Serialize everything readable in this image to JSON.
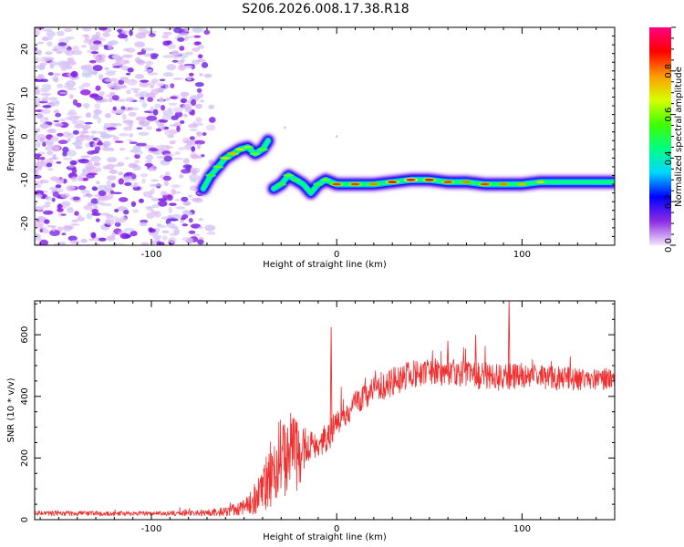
{
  "title": "S206.2026.008.17.38.R18",
  "chart_data": [
    {
      "type": "heatmap",
      "xlabel": "Height of straight line (km)",
      "ylabel": "Frequency (Hz)",
      "xlim": [
        -163,
        150
      ],
      "ylim": [
        -25,
        25
      ],
      "xticks": [
        "-100",
        "0",
        "100"
      ],
      "yticks": [
        "-20",
        "-10",
        "0",
        "10",
        "20"
      ],
      "colorbar": {
        "label": "Normalized spectral amplitude",
        "range": [
          0,
          1
        ],
        "ticks": [
          "0.0",
          "0.2",
          "0.4",
          "0.6",
          "0.8"
        ],
        "colors": [
          "#f2e6fb",
          "#8a2be2",
          "#0000ff",
          "#00d8ff",
          "#00ff80",
          "#40ff00",
          "#d8ff00",
          "#ff9a00",
          "#ff0000",
          "#ff0080"
        ]
      },
      "noise_region": {
        "x": [
          -163,
          -73
        ],
        "y": [
          -25,
          25
        ],
        "amplitude": 0.2
      },
      "ridge": {
        "x": [
          -72,
          -68,
          -64,
          -60,
          -56,
          -52,
          -48,
          -44,
          -40,
          -37,
          -34,
          -30,
          -26,
          -22,
          -18,
          -14,
          -10,
          -6,
          0,
          10,
          20,
          30,
          40,
          50,
          60,
          70,
          80,
          90,
          100,
          110,
          120,
          130,
          140,
          150
        ],
        "y": [
          -12,
          -9,
          -7,
          -5,
          -4,
          -3,
          -2.5,
          -4,
          -3,
          -1,
          -12,
          -11,
          -9,
          -10,
          -11,
          -13,
          -11,
          -10,
          -11,
          -11,
          -11,
          -10.5,
          -10,
          -10,
          -10.5,
          -10.5,
          -11,
          -11,
          -11,
          -10.5,
          -10.5,
          -10.5,
          -10.5,
          -10.5
        ],
        "amplitude": [
          0.45,
          0.55,
          0.6,
          0.7,
          0.75,
          0.7,
          0.65,
          0.6,
          0.6,
          0.4,
          0.5,
          0.55,
          0.6,
          0.55,
          0.5,
          0.45,
          0.55,
          0.6,
          0.85,
          0.85,
          0.8,
          0.9,
          0.95,
          0.9,
          0.85,
          0.8,
          0.85,
          0.8,
          0.75,
          0.7,
          0.5,
          0.45,
          0.45,
          0.45
        ]
      }
    },
    {
      "type": "line",
      "xlabel": "Height of straight line (km)",
      "ylabel": "SNR (10 * v/v)",
      "xlim": [
        -163,
        150
      ],
      "ylim": [
        0,
        710
      ],
      "xticks": [
        "-100",
        "0",
        "100"
      ],
      "yticks": [
        "0",
        "200",
        "400",
        "600"
      ],
      "color": "#f03030",
      "envelope": {
        "x": [
          -163,
          -100,
          -70,
          -60,
          -50,
          -40,
          -35,
          -30,
          -25,
          -20,
          -15,
          -10,
          -5,
          0,
          10,
          20,
          30,
          40,
          50,
          60,
          70,
          80,
          90,
          100,
          110,
          120,
          130,
          140,
          150
        ],
        "mean": [
          20,
          20,
          22,
          25,
          40,
          90,
          160,
          200,
          220,
          200,
          240,
          240,
          270,
          310,
          380,
          420,
          450,
          470,
          480,
          480,
          470,
          465,
          460,
          470,
          465,
          460,
          455,
          455,
          460
        ],
        "spread": [
          8,
          8,
          10,
          15,
          25,
          70,
          120,
          140,
          130,
          110,
          50,
          40,
          50,
          50,
          40,
          45,
          50,
          45,
          45,
          45,
          45,
          45,
          45,
          40,
          40,
          40,
          35,
          35,
          35
        ]
      },
      "spikes": [
        {
          "x": -3,
          "y": 625
        },
        {
          "x": 93,
          "y": 710
        },
        {
          "x": 75,
          "y": 600
        },
        {
          "x": 60,
          "y": 580
        }
      ]
    }
  ]
}
